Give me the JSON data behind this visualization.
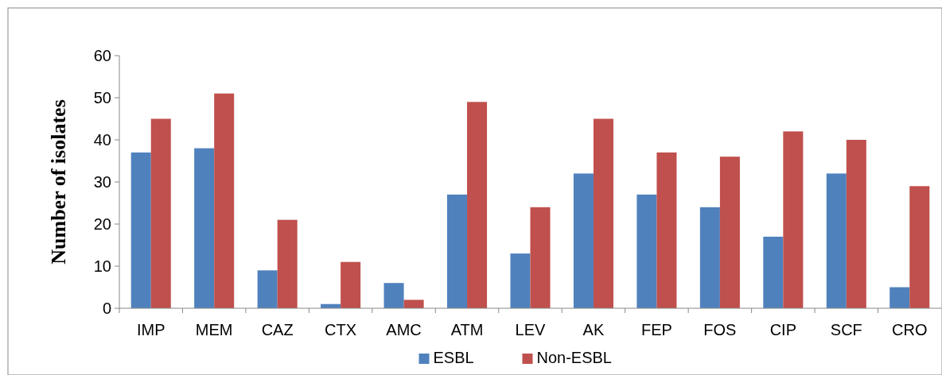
{
  "chart_data": {
    "type": "bar",
    "ylabel": "Number of isolates",
    "categories": [
      "IMP",
      "MEM",
      "CAZ",
      "CTX",
      "AMC",
      "ATM",
      "LEV",
      "AK",
      "FEP",
      "FOS",
      "CIP",
      "SCF",
      "CRO"
    ],
    "series": [
      {
        "name": "ESBL",
        "color": "#4f81bd",
        "values": [
          37,
          38,
          9,
          1,
          6,
          27,
          13,
          32,
          27,
          24,
          17,
          32,
          5
        ]
      },
      {
        "name": "Non-ESBL",
        "color": "#c0504d",
        "values": [
          45,
          51,
          21,
          11,
          2,
          49,
          24,
          45,
          37,
          36,
          42,
          40,
          29
        ]
      }
    ],
    "ylim": [
      0,
      60
    ],
    "yticks": [
      0,
      10,
      20,
      30,
      40,
      50,
      60
    ],
    "grid": false,
    "legend": "bottom"
  }
}
